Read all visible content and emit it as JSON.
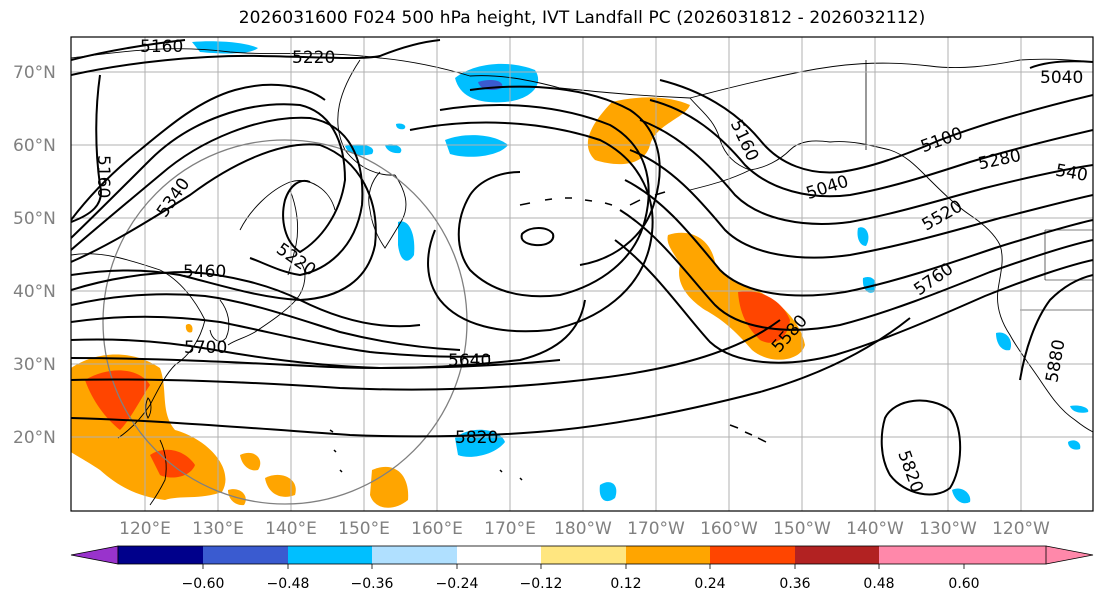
{
  "title": "2026031600 F024 500 hPa height, IVT Landfall PC (2026031812 - 2026032112)",
  "map": {
    "lat_labels": [
      "70°N",
      "60°N",
      "50°N",
      "40°N",
      "30°N",
      "20°N"
    ],
    "lon_labels": [
      "120°E",
      "130°E",
      "140°E",
      "150°E",
      "160°E",
      "170°E",
      "180°W",
      "170°W",
      "160°W",
      "150°W",
      "140°W",
      "130°W",
      "120°W"
    ],
    "contour_labels": [
      "5160",
      "5220",
      "5040",
      "5160",
      "5340",
      "5460",
      "5220",
      "5100",
      "5280",
      "540",
      "5040",
      "5160",
      "5520",
      "5760",
      "5580",
      "5700",
      "5640",
      "5820",
      "5820",
      "5880"
    ],
    "colors": {
      "contour": "#000000",
      "coast": "#000000",
      "grid": "#b0b0b0",
      "circle": "#808080"
    }
  },
  "colorbar": {
    "colors": [
      "#9933cc",
      "#00008b",
      "#3a5bd0",
      "#00bfff",
      "#b0e0ff",
      "#ffffff",
      "#ffe680",
      "#ffa500",
      "#ff4500",
      "#b22222",
      "#ff88aa"
    ],
    "ticks": [
      "−0.60",
      "−0.48",
      "−0.36",
      "−0.24",
      "−0.12",
      "0.12",
      "0.24",
      "0.36",
      "0.48",
      "0.60"
    ]
  }
}
